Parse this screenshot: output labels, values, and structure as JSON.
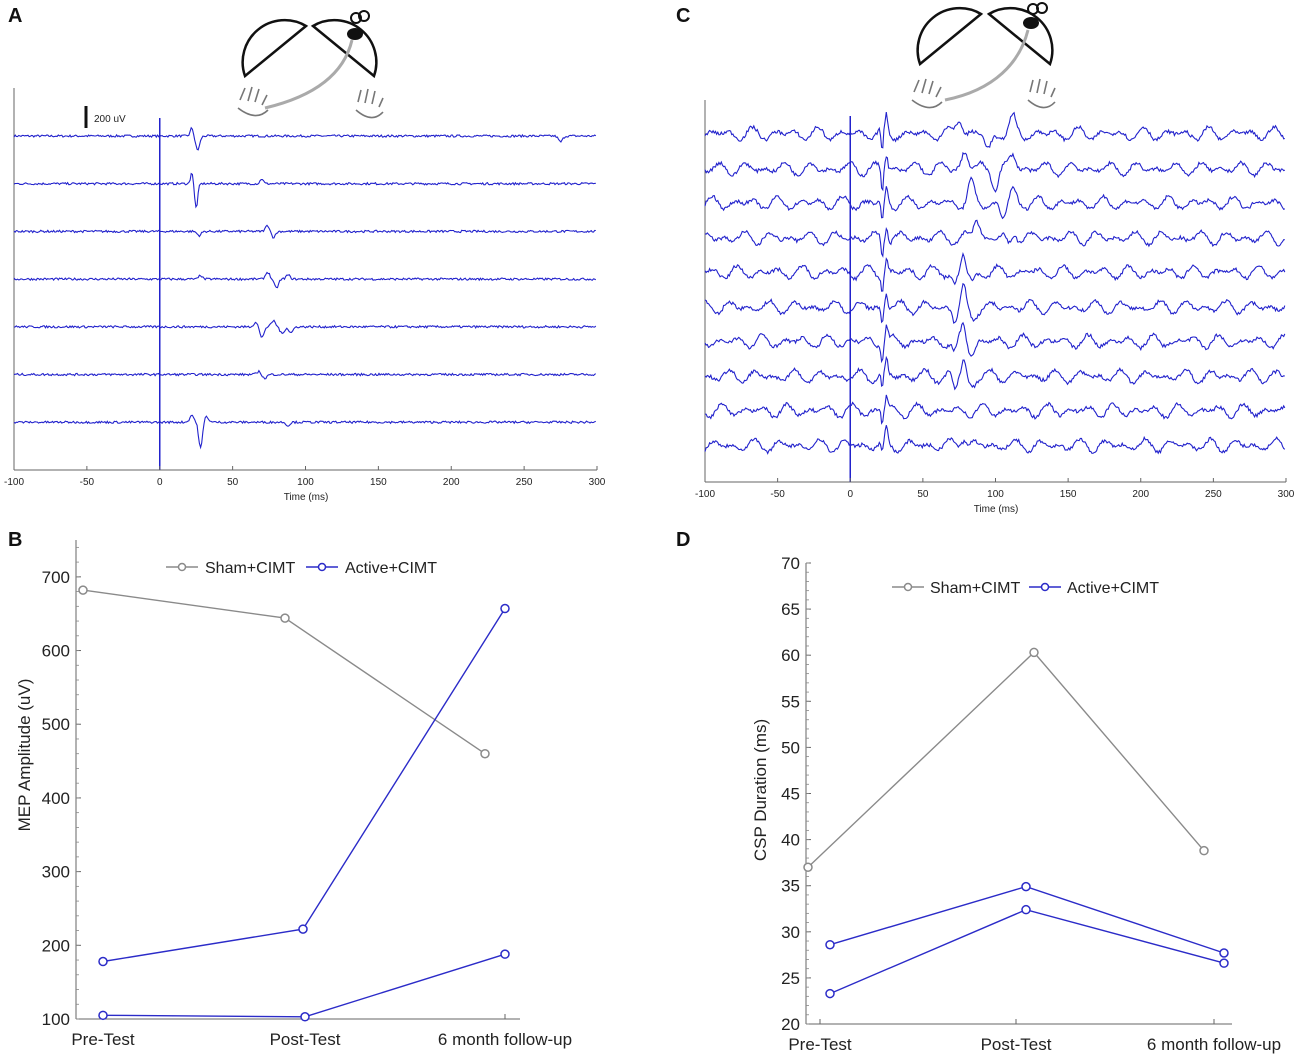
{
  "chart_data": [
    {
      "panel": "A",
      "type": "line",
      "title": "",
      "xlabel": "Time (ms)",
      "ylabel": "",
      "xlim": [
        -100,
        300
      ],
      "xticks": [
        "-100",
        "-50",
        "0",
        "50",
        "100",
        "150",
        "200",
        "250",
        "300"
      ],
      "scale_bar_label": "200 uV",
      "trace_count": 7,
      "trace_color": "#2222cc",
      "stimulus_time_ms": 0
    },
    {
      "panel": "C",
      "type": "line",
      "title": "",
      "xlabel": "Time (ms)",
      "ylabel": "",
      "xlim": [
        -100,
        300
      ],
      "xticks": [
        "-100",
        "-50",
        "0",
        "50",
        "100",
        "150",
        "200",
        "250",
        "300"
      ],
      "trace_count": 10,
      "trace_color": "#2222cc",
      "stimulus_time_ms": 0
    },
    {
      "panel": "B",
      "type": "line",
      "categories": [
        "Pre-Test",
        "Post-Test",
        "6 month follow-up"
      ],
      "ylabel": "MEP Amplitude (uV)",
      "ylim": [
        100,
        750
      ],
      "yticks": [
        "100",
        "200",
        "300",
        "400",
        "500",
        "600",
        "700"
      ],
      "legend": [
        "Sham+CIMT",
        "Active+CIMT"
      ],
      "legend_position": "top",
      "series": [
        {
          "name": "Sham+CIMT",
          "color": "#8a8a8a",
          "values": [
            682,
            644,
            460
          ]
        },
        {
          "name": "Active+CIMT",
          "color": "#2b2bc8",
          "values": [
            178,
            222,
            657
          ]
        },
        {
          "name": "Active+CIMT",
          "color": "#2b2bc8",
          "values": [
            105,
            103,
            188
          ]
        }
      ]
    },
    {
      "panel": "D",
      "type": "line",
      "categories": [
        "Pre-Test",
        "Post-Test",
        "6 month follow-up"
      ],
      "ylabel": "CSP Duration (ms)",
      "ylim": [
        20,
        70
      ],
      "yticks": [
        "20",
        "25",
        "30",
        "35",
        "40",
        "45",
        "50",
        "55",
        "60",
        "65",
        "70"
      ],
      "legend": [
        "Sham+CIMT",
        "Active+CIMT"
      ],
      "legend_position": "top",
      "series": [
        {
          "name": "Sham+CIMT",
          "color": "#8a8a8a",
          "values": [
            37,
            60.3,
            38.8
          ]
        },
        {
          "name": "Active+CIMT",
          "color": "#2b2bc8",
          "values": [
            28.6,
            34.9,
            27.7
          ]
        },
        {
          "name": "Active+CIMT",
          "color": "#2b2bc8",
          "values": [
            23.3,
            32.4,
            26.6
          ]
        }
      ]
    }
  ],
  "panel_labels": [
    "A",
    "B",
    "C",
    "D"
  ]
}
